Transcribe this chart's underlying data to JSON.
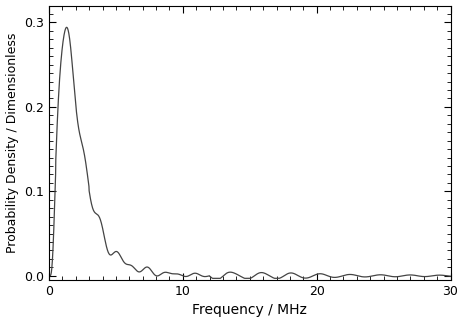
{
  "title": "",
  "xlabel": "Frequency / MHz",
  "ylabel": "Probability Density / Dimensionless",
  "xlim": [
    0,
    30
  ],
  "ylim": [
    -0.005,
    0.32
  ],
  "yticks": [
    0.0,
    0.1,
    0.2,
    0.3
  ],
  "xticks": [
    0,
    10,
    20,
    30
  ],
  "line_color": "#444444",
  "line_width": 0.9,
  "bg_color": "#ffffff",
  "figsize": [
    4.64,
    3.23
  ],
  "dpi": 100
}
